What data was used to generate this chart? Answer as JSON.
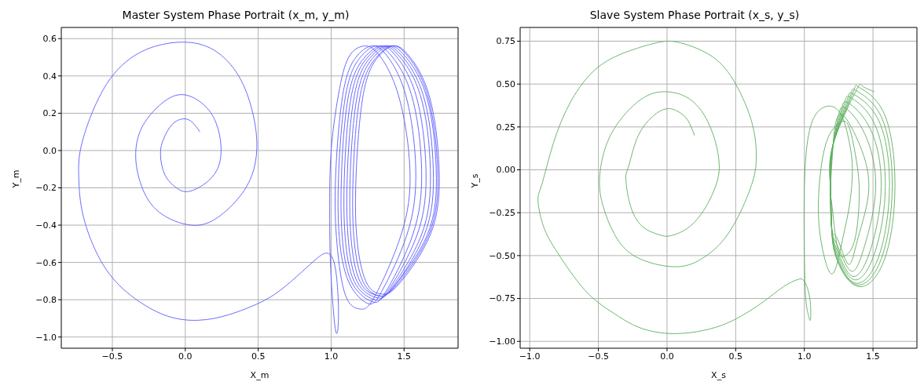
{
  "chart_data": [
    {
      "type": "line",
      "title": "Master System Phase Portrait (x_m, y_m)",
      "xlabel": "X_m",
      "ylabel": "Y_m",
      "grid": true,
      "legend": false,
      "xlim": [
        -0.85,
        1.87
      ],
      "ylim": [
        -1.06,
        0.66
      ],
      "xticks": [
        {
          "value": -0.5,
          "label": "−0.5"
        },
        {
          "value": 0,
          "label": "0.0"
        },
        {
          "value": 0.5,
          "label": "0.5"
        },
        {
          "value": 1,
          "label": "1.0"
        },
        {
          "value": 1.5,
          "label": "1.5"
        }
      ],
      "yticks": [
        {
          "value": -1,
          "label": "−1.0"
        },
        {
          "value": -0.8,
          "label": "−0.8"
        },
        {
          "value": -0.6,
          "label": "−0.6"
        },
        {
          "value": -0.4,
          "label": "−0.4"
        },
        {
          "value": -0.2,
          "label": "−0.2"
        },
        {
          "value": 0,
          "label": "0.0"
        },
        {
          "value": 0.2,
          "label": "0.2"
        },
        {
          "value": 0.4,
          "label": "0.4"
        },
        {
          "value": 0.6,
          "label": "0.6"
        }
      ],
      "series": [
        {
          "color": "#5a5aff",
          "x": [
            0.1,
            0.05,
            -0.01,
            -0.09,
            -0.15,
            -0.17,
            -0.14,
            -0.06,
            0.02,
            0.13,
            0.22,
            0.245,
            0.21,
            0.12,
            -0.03,
            -0.18,
            -0.3,
            -0.34,
            -0.3,
            -0.18,
            0.04,
            0.22,
            0.38,
            0.47,
            0.49,
            0.45,
            0.35,
            0.17,
            -0.06,
            -0.3,
            -0.5,
            -0.64,
            -0.72,
            -0.73,
            -0.7,
            -0.58,
            -0.4,
            -0.15,
            0.09,
            0.3,
            0.5,
            0.65,
            0.8,
            0.9,
            0.97,
            1.02,
            1.045,
            1.05,
            1.04,
            1.02,
            0.995,
            0.99,
            1.0,
            1.05,
            1.12,
            1.22,
            1.32,
            1.46,
            1.54,
            1.48,
            1.3,
            1.2,
            1.1,
            1.04,
            1.03,
            1.08,
            1.17,
            1.27,
            1.37,
            1.51,
            1.58,
            1.52,
            1.35,
            1.25,
            1.13,
            1.06,
            1.05,
            1.1,
            1.2,
            1.3,
            1.4,
            1.55,
            1.62,
            1.56,
            1.38,
            1.28,
            1.15,
            1.08,
            1.07,
            1.12,
            1.23,
            1.33,
            1.43,
            1.58,
            1.65,
            1.59,
            1.4,
            1.3,
            1.17,
            1.1,
            1.09,
            1.14,
            1.25,
            1.35,
            1.45,
            1.61,
            1.68,
            1.62,
            1.42,
            1.32,
            1.19,
            1.12,
            1.11,
            1.16,
            1.27,
            1.37,
            1.47,
            1.63,
            1.7,
            1.64,
            1.43,
            1.33,
            1.21,
            1.14,
            1.13,
            1.18,
            1.29,
            1.39,
            1.49,
            1.65,
            1.72,
            1.66,
            1.44,
            1.34,
            1.23,
            1.16,
            1.15,
            1.2,
            1.31,
            1.41,
            1.51,
            1.66,
            1.73,
            1.67,
            1.45,
            1.35,
            1.25,
            1.18,
            1.17,
            1.22,
            1.32,
            1.42,
            1.52,
            1.67,
            1.74,
            1.68,
            1.46,
            1.36
          ],
          "values": [
            0.1,
            0.15,
            0.17,
            0.14,
            0.06,
            -0.02,
            -0.13,
            -0.2,
            -0.22,
            -0.18,
            -0.1,
            0.02,
            0.15,
            0.25,
            0.3,
            0.24,
            0.12,
            -0.03,
            -0.19,
            -0.33,
            -0.4,
            -0.36,
            -0.24,
            -0.1,
            0.06,
            0.24,
            0.42,
            0.55,
            0.58,
            0.53,
            0.4,
            0.2,
            0.0,
            -0.15,
            -0.35,
            -0.59,
            -0.76,
            -0.88,
            -0.91,
            -0.88,
            -0.82,
            -0.75,
            -0.65,
            -0.58,
            -0.55,
            -0.6,
            -0.75,
            -0.9,
            -0.98,
            -0.9,
            -0.6,
            -0.3,
            0.0,
            0.3,
            0.5,
            0.56,
            0.52,
            0.3,
            -0.1,
            -0.45,
            -0.78,
            -0.85,
            -0.78,
            -0.5,
            -0.15,
            0.3,
            0.5,
            0.56,
            0.52,
            0.3,
            -0.1,
            -0.45,
            -0.75,
            -0.82,
            -0.72,
            -0.5,
            -0.15,
            0.3,
            0.5,
            0.56,
            0.52,
            0.3,
            -0.1,
            -0.45,
            -0.75,
            -0.81,
            -0.72,
            -0.5,
            -0.15,
            0.3,
            0.5,
            0.56,
            0.52,
            0.3,
            -0.1,
            -0.45,
            -0.74,
            -0.8,
            -0.72,
            -0.5,
            -0.15,
            0.3,
            0.5,
            0.56,
            0.52,
            0.3,
            -0.1,
            -0.45,
            -0.73,
            -0.79,
            -0.72,
            -0.5,
            -0.15,
            0.3,
            0.5,
            0.56,
            0.52,
            0.3,
            -0.1,
            -0.45,
            -0.73,
            -0.78,
            -0.72,
            -0.5,
            -0.15,
            0.3,
            0.5,
            0.56,
            0.52,
            0.3,
            -0.1,
            -0.45,
            -0.72,
            -0.78,
            -0.72,
            -0.5,
            -0.15,
            0.3,
            0.5,
            0.56,
            0.52,
            0.3,
            -0.1,
            -0.45,
            -0.72,
            -0.77,
            -0.72,
            -0.5,
            -0.15,
            0.3,
            0.5,
            0.56,
            0.52,
            0.3,
            -0.1,
            -0.45,
            -0.72,
            -0.77
          ]
        }
      ]
    },
    {
      "type": "line",
      "title": "Slave System Phase Portrait (x_s, y_s)",
      "xlabel": "X_s",
      "ylabel": "Y_s",
      "grid": true,
      "legend": false,
      "xlim": [
        -1.07,
        1.82
      ],
      "ylim": [
        -1.04,
        0.83
      ],
      "xticks": [
        {
          "value": -1,
          "label": "−1.0"
        },
        {
          "value": -0.5,
          "label": "−0.5"
        },
        {
          "value": 0,
          "label": "0.0"
        },
        {
          "value": 0.5,
          "label": "0.5"
        },
        {
          "value": 1,
          "label": "1.0"
        },
        {
          "value": 1.5,
          "label": "1.5"
        }
      ],
      "yticks": [
        {
          "value": -1,
          "label": "−1.00"
        },
        {
          "value": -0.75,
          "label": "−0.75"
        },
        {
          "value": -0.5,
          "label": "−0.50"
        },
        {
          "value": -0.25,
          "label": "−0.25"
        },
        {
          "value": 0,
          "label": "0.00"
        },
        {
          "value": 0.25,
          "label": "0.25"
        },
        {
          "value": 0.5,
          "label": "0.50"
        },
        {
          "value": 0.75,
          "label": "0.75"
        }
      ],
      "series": [
        {
          "color": "#5fae5f",
          "x": [
            0.2,
            0.15,
            0.08,
            -0.01,
            -0.12,
            -0.22,
            -0.28,
            -0.3,
            -0.27,
            -0.18,
            -0.05,
            0.02,
            0.15,
            0.28,
            0.36,
            0.38,
            0.35,
            0.27,
            0.15,
            0.0,
            -0.15,
            -0.3,
            -0.43,
            -0.49,
            -0.47,
            -0.38,
            -0.22,
            0.05,
            0.25,
            0.42,
            0.55,
            0.63,
            0.65,
            0.62,
            0.5,
            0.33,
            0.1,
            -0.05,
            -0.25,
            -0.5,
            -0.7,
            -0.83,
            -0.91,
            -0.94,
            -0.9,
            -0.8,
            -0.6,
            -0.4,
            -0.2,
            0.05,
            0.3,
            0.5,
            0.7,
            0.85,
            0.95,
            1.0,
            1.04,
            1.045,
            1.03,
            1.01,
            1.0,
            1.0,
            1.03,
            1.1,
            1.2,
            1.28,
            1.33,
            1.35,
            1.33,
            1.28,
            1.22,
            1.16,
            1.105,
            1.12,
            1.18,
            1.27,
            1.33,
            1.38,
            1.4,
            1.37,
            1.3,
            1.24,
            1.2,
            1.19,
            1.21,
            1.23,
            1.28,
            1.39,
            1.47,
            1.39,
            1.32,
            1.24,
            1.2,
            1.19,
            1.21,
            1.25,
            1.3,
            1.44,
            1.52,
            1.44,
            1.34,
            1.24,
            1.2,
            1.19,
            1.21,
            1.27,
            1.32,
            1.48,
            1.56,
            1.48,
            1.35,
            1.24,
            1.2,
            1.19,
            1.21,
            1.29,
            1.34,
            1.51,
            1.59,
            1.51,
            1.36,
            1.24,
            1.2,
            1.19,
            1.21,
            1.31,
            1.36,
            1.54,
            1.62,
            1.54,
            1.37,
            1.24,
            1.2,
            1.19,
            1.21,
            1.33,
            1.38,
            1.56,
            1.64,
            1.56,
            1.38,
            1.24,
            1.2,
            1.19,
            1.21,
            1.35,
            1.4,
            1.58,
            1.66,
            1.58,
            1.39,
            1.24,
            1.2,
            1.19,
            1.21,
            1.37,
            1.42,
            1.51
          ],
          "values": [
            0.2,
            0.29,
            0.34,
            0.355,
            0.3,
            0.18,
            0.02,
            -0.05,
            -0.2,
            -0.33,
            -0.38,
            -0.385,
            -0.34,
            -0.22,
            -0.08,
            0.03,
            0.17,
            0.32,
            0.42,
            0.455,
            0.43,
            0.33,
            0.17,
            -0.03,
            -0.2,
            -0.38,
            -0.51,
            -0.565,
            -0.52,
            -0.4,
            -0.22,
            -0.05,
            0.08,
            0.27,
            0.5,
            0.66,
            0.74,
            0.745,
            0.7,
            0.6,
            0.4,
            0.15,
            -0.08,
            -0.18,
            -0.33,
            -0.48,
            -0.7,
            -0.83,
            -0.92,
            -0.955,
            -0.93,
            -0.87,
            -0.77,
            -0.68,
            -0.64,
            -0.65,
            -0.75,
            -0.87,
            -0.85,
            -0.75,
            -0.5,
            -0.1,
            0.2,
            0.34,
            0.37,
            0.3,
            0.15,
            0.0,
            -0.2,
            -0.4,
            -0.59,
            -0.55,
            -0.3,
            0.0,
            0.2,
            0.28,
            0.24,
            0.05,
            -0.15,
            -0.4,
            -0.5,
            -0.45,
            -0.2,
            -0.1,
            0.15,
            0.28,
            0.32,
            0.17,
            -0.1,
            -0.4,
            -0.55,
            -0.4,
            -0.35,
            -0.1,
            0.15,
            0.32,
            0.36,
            0.21,
            -0.1,
            -0.44,
            -0.59,
            -0.44,
            -0.35,
            -0.1,
            0.15,
            0.35,
            0.39,
            0.24,
            -0.1,
            -0.47,
            -0.62,
            -0.47,
            -0.35,
            -0.1,
            0.15,
            0.38,
            0.42,
            0.27,
            -0.1,
            -0.49,
            -0.64,
            -0.49,
            -0.35,
            -0.1,
            0.15,
            0.4,
            0.44,
            0.29,
            -0.1,
            -0.51,
            -0.66,
            -0.51,
            -0.35,
            -0.1,
            0.15,
            0.42,
            0.46,
            0.31,
            -0.1,
            -0.52,
            -0.67,
            -0.52,
            -0.35,
            -0.1,
            0.15,
            0.44,
            0.48,
            0.33,
            -0.1,
            -0.53,
            -0.68,
            -0.53,
            -0.35,
            -0.1,
            0.15,
            0.45,
            0.49,
            0.455
          ]
        }
      ]
    }
  ]
}
